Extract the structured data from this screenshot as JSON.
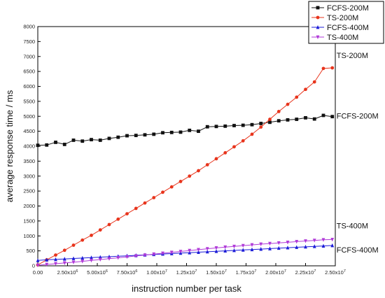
{
  "chart_data": {
    "type": "line",
    "xlabel": "instruction number per task",
    "ylabel": "average response time / ms",
    "xlim": [
      0,
      25000000
    ],
    "ylim": [
      0,
      8000
    ],
    "x_tick_values": [
      0,
      2500000,
      5000000,
      7500000,
      10000000,
      12500000,
      15000000,
      17500000,
      20000000,
      22500000,
      25000000
    ],
    "x_tick_labels": [
      {
        "mantissa": "0.00",
        "exp": ""
      },
      {
        "mantissa": "2.50x10",
        "exp": "6"
      },
      {
        "mantissa": "5.00x10",
        "exp": "6"
      },
      {
        "mantissa": "7.50x10",
        "exp": "6"
      },
      {
        "mantissa": "1.00x10",
        "exp": "7"
      },
      {
        "mantissa": "1.25x10",
        "exp": "7"
      },
      {
        "mantissa": "1.50x10",
        "exp": "7"
      },
      {
        "mantissa": "1.75x10",
        "exp": "7"
      },
      {
        "mantissa": "2.00x10",
        "exp": "7"
      },
      {
        "mantissa": "2.25x10",
        "exp": "7"
      },
      {
        "mantissa": "2.50x10",
        "exp": "7"
      }
    ],
    "y_ticks": [
      "0",
      "500",
      "1000",
      "1500",
      "2000",
      "2500",
      "3000",
      "3500",
      "4000",
      "4500",
      "5000",
      "5500",
      "6000",
      "6500",
      "7000",
      "7500",
      "8000"
    ],
    "grid": false,
    "legend_position": "top-right",
    "x": [
      0,
      750000,
      1500000,
      2250000,
      3000000,
      3750000,
      4500000,
      5250000,
      6000000,
      6750000,
      7500000,
      8250000,
      9000000,
      9750000,
      10500000,
      11250000,
      12000000,
      12750000,
      13500000,
      14250000,
      15000000,
      15750000,
      16500000,
      17250000,
      18000000,
      18750000,
      19500000,
      20250000,
      21000000,
      21750000,
      22500000,
      23250000,
      24000000,
      24750000
    ],
    "series": [
      {
        "name": "FCFS-200M",
        "color": "#111111",
        "marker": "square",
        "values": [
          4030,
          4040,
          4130,
          4060,
          4200,
          4170,
          4220,
          4200,
          4260,
          4300,
          4350,
          4360,
          4380,
          4400,
          4450,
          4460,
          4470,
          4530,
          4500,
          4650,
          4660,
          4670,
          4690,
          4700,
          4720,
          4760,
          4800,
          4850,
          4880,
          4900,
          4950,
          4910,
          5030,
          4990
        ]
      },
      {
        "name": "TS-200M",
        "color": "#e8341c",
        "marker": "circle",
        "values": [
          30,
          200,
          360,
          520,
          690,
          860,
          1020,
          1200,
          1380,
          1560,
          1740,
          1920,
          2100,
          2280,
          2460,
          2640,
          2820,
          3000,
          3180,
          3380,
          3580,
          3780,
          3980,
          4180,
          4400,
          4640,
          4900,
          5160,
          5400,
          5640,
          5900,
          6150,
          6600,
          6620
        ]
      },
      {
        "name": "FCFS-400M",
        "color": "#1c1cd8",
        "marker": "triangle",
        "values": [
          180,
          200,
          215,
          230,
          245,
          260,
          275,
          290,
          305,
          320,
          335,
          350,
          365,
          380,
          395,
          410,
          425,
          440,
          455,
          470,
          485,
          500,
          515,
          530,
          545,
          560,
          575,
          590,
          605,
          620,
          635,
          650,
          665,
          680
        ]
      },
      {
        "name": "TS-400M",
        "color": "#b03ad8",
        "marker": "triangle-down",
        "values": [
          20,
          45,
          70,
          95,
          120,
          150,
          180,
          210,
          240,
          270,
          300,
          330,
          360,
          390,
          420,
          450,
          480,
          510,
          540,
          570,
          600,
          625,
          650,
          675,
          700,
          725,
          745,
          765,
          785,
          810,
          830,
          850,
          870,
          880
        ]
      }
    ],
    "annotations": [
      {
        "text": "TS-200M",
        "series": "TS-200M"
      },
      {
        "text": "FCFS-200M",
        "series": "FCFS-200M"
      },
      {
        "text": "TS-400M",
        "series": "TS-400M"
      },
      {
        "text": "FCFS-400M",
        "series": "FCFS-400M"
      }
    ]
  }
}
